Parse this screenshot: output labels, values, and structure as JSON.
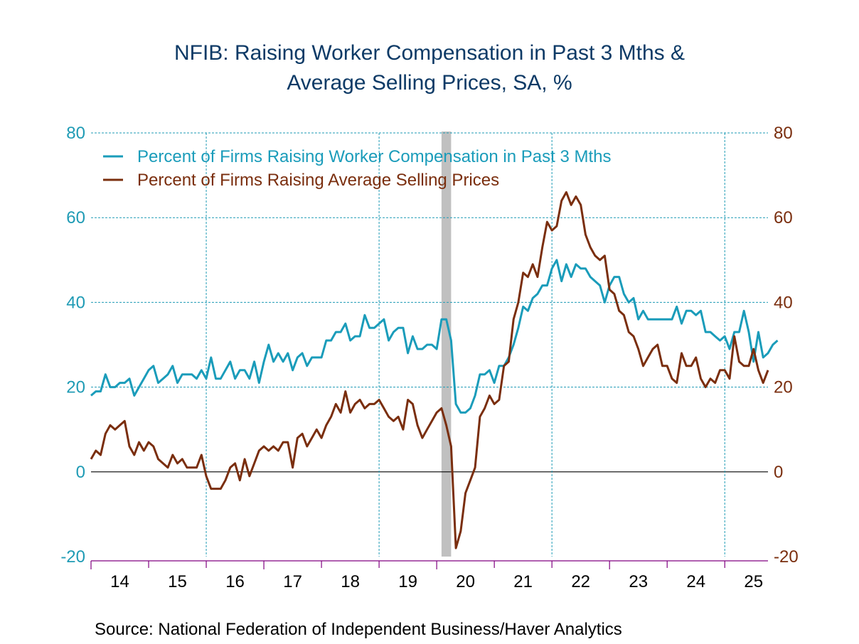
{
  "chart_data": {
    "type": "line",
    "title": "NFIB: Raising Worker Compensation in Past 3 Mths & Average Selling Prices, SA, %",
    "title_lines": [
      "NFIB: Raising Worker Compensation in Past 3 Mths &",
      "Average Selling Prices, SA, %"
    ],
    "source": "Source:  National Federation of Independent Business/Haver Analytics",
    "xlabel": "",
    "ylabel_left": "",
    "ylabel_right": "",
    "x_start": "2014-01",
    "frequency": "monthly",
    "x_tick_labels": [
      "14",
      "15",
      "16",
      "17",
      "18",
      "19",
      "20",
      "21",
      "22",
      "23",
      "24",
      "25"
    ],
    "x_range_years": [
      2014,
      2025.75
    ],
    "ylim": [
      -20,
      80
    ],
    "y_ticks_left": [
      "80",
      "60",
      "40",
      "20",
      "0",
      "-20"
    ],
    "y_ticks_right": [
      "80",
      "60",
      "40",
      "20",
      "0",
      "-20"
    ],
    "grid": true,
    "legend_position": "top-left",
    "recession_shading": {
      "start": "2020-02",
      "end": "2020-04",
      "color": "#c0c0c0"
    },
    "colors": {
      "left_axis": "#1f9bb5",
      "right_axis": "#7a2e0e",
      "grid": "#1f9bb5",
      "axis_base": "#800080"
    },
    "series": [
      {
        "name": "Percent of Firms Raising Worker Compensation in Past 3 Mths",
        "color": "#1a9cba",
        "values": [
          18,
          19,
          19,
          23,
          20,
          20,
          21,
          21,
          22,
          18,
          20,
          22,
          24,
          25,
          21,
          22,
          23,
          25,
          21,
          23,
          23,
          23,
          22,
          24,
          22,
          27,
          22,
          22,
          24,
          26,
          22,
          24,
          24,
          22,
          26,
          21,
          26,
          30,
          26,
          28,
          26,
          28,
          24,
          27,
          28,
          25,
          27,
          27,
          27,
          31,
          31,
          33,
          33,
          35,
          31,
          32,
          32,
          37,
          34,
          34,
          35,
          36,
          31,
          33,
          34,
          34,
          28,
          32,
          29,
          29,
          30,
          30,
          29,
          36,
          36,
          31,
          16,
          14,
          14,
          15,
          18,
          23,
          23,
          24,
          21,
          25,
          25,
          27,
          30,
          34,
          39,
          38,
          41,
          42,
          44,
          44,
          48,
          50,
          45,
          49,
          46,
          49,
          48,
          48,
          46,
          45,
          44,
          40,
          44,
          46,
          46,
          42,
          40,
          41,
          36,
          38,
          36,
          36,
          36,
          36,
          36,
          36,
          39,
          35,
          38,
          38,
          37,
          38,
          33,
          33,
          32,
          31,
          32,
          29,
          33,
          33,
          38,
          33,
          26,
          33,
          27,
          28,
          30,
          31
        ]
      },
      {
        "name": "Percent of Firms Raising Average Selling Prices",
        "color": "#7a2e0e",
        "values": [
          3,
          5,
          4,
          9,
          11,
          10,
          11,
          12,
          6,
          4,
          7,
          5,
          7,
          6,
          3,
          2,
          1,
          4,
          2,
          3,
          1,
          1,
          1,
          4,
          -1,
          -4,
          -4,
          -4,
          -2,
          1,
          2,
          -2,
          3,
          -1,
          2,
          5,
          6,
          5,
          6,
          5,
          7,
          7,
          1,
          8,
          9,
          6,
          8,
          10,
          8,
          11,
          13,
          16,
          14,
          19,
          14,
          16,
          17,
          15,
          16,
          16,
          17,
          15,
          13,
          12,
          13,
          10,
          17,
          16,
          11,
          8,
          10,
          12,
          14,
          15,
          11,
          6,
          -18,
          -14,
          -5,
          -2,
          1,
          13,
          15,
          18,
          16,
          17,
          25,
          26,
          36,
          40,
          47,
          46,
          49,
          46,
          53,
          59,
          57,
          58,
          64,
          66,
          63,
          65,
          63,
          56,
          53,
          51,
          50,
          51,
          43,
          42,
          38,
          37,
          33,
          32,
          29,
          25,
          27,
          29,
          30,
          25,
          25,
          22,
          21,
          28,
          25,
          25,
          27,
          22,
          20,
          22,
          21,
          24,
          24,
          22,
          32,
          26,
          25,
          25,
          29,
          24,
          21,
          24
        ]
      }
    ]
  }
}
